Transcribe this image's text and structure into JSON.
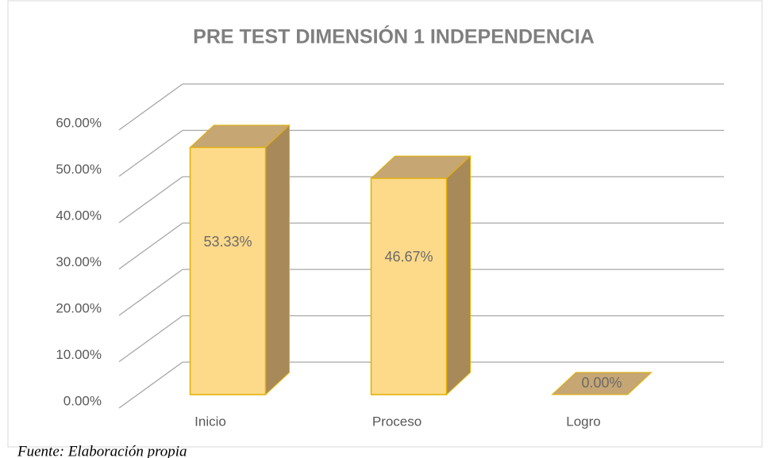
{
  "chart_data": {
    "type": "bar3d",
    "title": "PRE TEST DIMENSIÓN 1 INDEPENDENCIA",
    "categories": [
      "Inicio",
      "Proceso",
      "Logro"
    ],
    "values": [
      53.33,
      46.67,
      0
    ],
    "value_labels": [
      "53.33%",
      "46.67%",
      "0.00%"
    ],
    "color": "#fdd98a",
    "ylim": [
      0,
      60
    ],
    "yticks": [
      {
        "value": 0,
        "label": "0.00%"
      },
      {
        "value": 10,
        "label": "10.00%"
      },
      {
        "value": 20,
        "label": "20.00%"
      },
      {
        "value": 30,
        "label": "30.00%"
      },
      {
        "value": 40,
        "label": "40.00%"
      },
      {
        "value": 50,
        "label": "50.00%"
      },
      {
        "value": 60,
        "label": "60.00%"
      }
    ],
    "grid": true
  },
  "source": "Fuente: Elaboración propia"
}
